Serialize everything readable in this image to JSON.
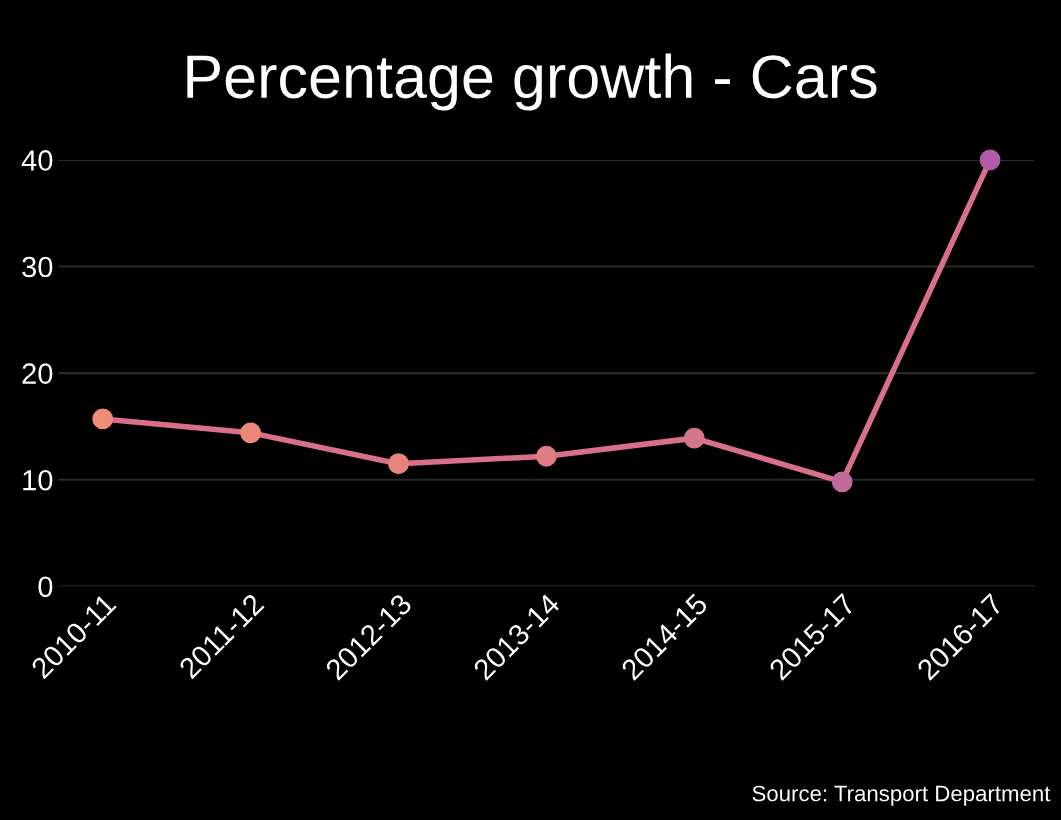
{
  "chart_data": {
    "type": "line",
    "title": "Percentage growth - Cars",
    "categories": [
      "2010-11",
      "2011-12",
      "2012-13",
      "2013-14",
      "2014-15",
      "2015-17",
      "2016-17"
    ],
    "series": [
      {
        "color": "#d9708a",
        "colors": [
          "#f08c78",
          "#ec8878",
          "#e6837c",
          "#de7d84",
          "#d4778c",
          "#c06a9c",
          "#b05aa8"
        ],
        "values": [
          15.7,
          14.4,
          11.5,
          12.2,
          13.9,
          9.8,
          40
        ]
      }
    ],
    "ylim": [
      0,
      40
    ],
    "yticks": [
      0,
      10,
      20,
      30,
      40
    ],
    "grid": "y",
    "marker": "circle",
    "line_style": "solid",
    "legend": false,
    "annotations": [
      "Source: Transport Department"
    ]
  }
}
